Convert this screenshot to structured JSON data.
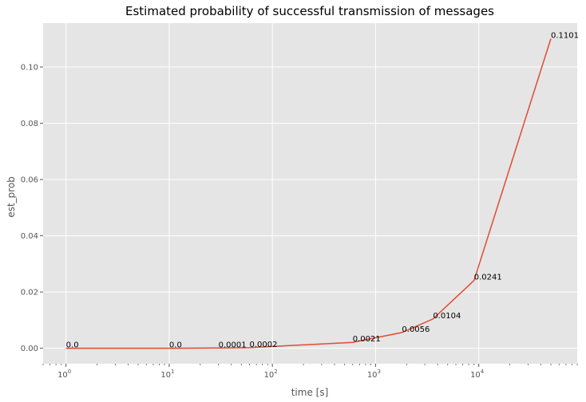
{
  "chart_data": {
    "type": "line",
    "title": "Estimated probability of successful transmission of messages",
    "xlabel": "time [s]",
    "ylabel": "est_prob",
    "x_scale": "log",
    "xlim": [
      0.6,
      90000
    ],
    "ylim": [
      -0.0055,
      0.1156
    ],
    "grid": true,
    "x_ticks": [
      {
        "base": "10",
        "exp": "0",
        "value": 1
      },
      {
        "base": "10",
        "exp": "1",
        "value": 10
      },
      {
        "base": "10",
        "exp": "2",
        "value": 100
      },
      {
        "base": "10",
        "exp": "3",
        "value": 1000
      },
      {
        "base": "10",
        "exp": "4",
        "value": 10000
      }
    ],
    "y_ticks": [
      {
        "label": "0.00",
        "value": 0.0
      },
      {
        "label": "0.02",
        "value": 0.02
      },
      {
        "label": "0.04",
        "value": 0.04
      },
      {
        "label": "0.06",
        "value": 0.06
      },
      {
        "label": "0.08",
        "value": 0.08
      },
      {
        "label": "0.10",
        "value": 0.1
      }
    ],
    "series": [
      {
        "color": "#e24a33",
        "points": [
          {
            "x": 1,
            "y": 0.0,
            "label": "0.0"
          },
          {
            "x": 10,
            "y": 0.0,
            "label": "0.0"
          },
          {
            "x": 30,
            "y": 0.0001,
            "label": "0.0001"
          },
          {
            "x": 60,
            "y": 0.0002,
            "label": "0.0002"
          },
          {
            "x": 600,
            "y": 0.0021,
            "label": "0.0021"
          },
          {
            "x": 1800,
            "y": 0.0056,
            "label": "0.0056"
          },
          {
            "x": 3600,
            "y": 0.0104,
            "label": "0.0104"
          },
          {
            "x": 9000,
            "y": 0.0241,
            "label": "0.0241"
          },
          {
            "x": 50000,
            "y": 0.1101,
            "label": "0.1101"
          }
        ]
      }
    ]
  }
}
